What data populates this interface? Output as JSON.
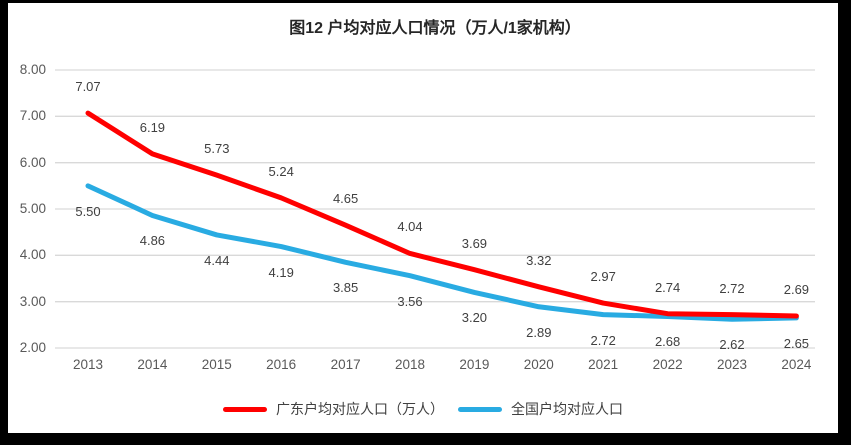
{
  "chart_data": {
    "type": "line",
    "title": "图12 户均对应人口情况（万人/1家机构）",
    "xlabel": "",
    "ylabel": "",
    "categories": [
      "2013",
      "2014",
      "2015",
      "2016",
      "2017",
      "2018",
      "2019",
      "2020",
      "2021",
      "2022",
      "2023",
      "2024"
    ],
    "series": [
      {
        "name": "广东户均对应人口（万人）",
        "color": "#FF0000",
        "values": [
          7.07,
          6.19,
          5.73,
          5.24,
          4.65,
          4.04,
          3.69,
          3.32,
          2.97,
          2.74,
          2.72,
          2.69
        ],
        "label_position": "above"
      },
      {
        "name": "全国户均对应人口",
        "color": "#29ABE2",
        "values": [
          5.5,
          4.86,
          4.44,
          4.19,
          3.85,
          3.56,
          3.2,
          2.89,
          2.72,
          2.68,
          2.62,
          2.65
        ],
        "label_position": "below"
      }
    ],
    "ylim": [
      2.0,
      8.0
    ],
    "ytick_step": 1.0,
    "yticks": [
      "8.00",
      "7.00",
      "6.00",
      "5.00",
      "4.00",
      "3.00",
      "2.00"
    ],
    "value_decimals": 2,
    "grid": "horizontal",
    "gridline_color": "#D9D9D9",
    "axis_text_color": "#595959",
    "data_label_color": "#404040",
    "legend_position": "bottom"
  },
  "legend": {
    "items": [
      {
        "label": "广东户均对应人口（万人）",
        "color": "#FF0000"
      },
      {
        "label": "全国户均对应人口",
        "color": "#29ABE2"
      }
    ]
  },
  "frame": {
    "color": "#000000"
  }
}
